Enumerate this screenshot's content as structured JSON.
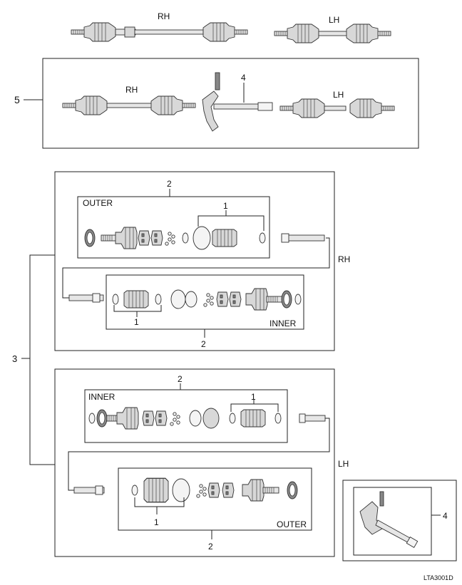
{
  "labels": {
    "rh_top": "RH",
    "lh_top": "LH",
    "callout_5": "5",
    "callout_4_mid": "4",
    "rh_assembly": "RH",
    "lh_assembly": "LH",
    "callout_2_rh_outer": "2",
    "outer_rh": "OUTER",
    "callout_1_rh_outer": "1",
    "rh_side": "RH",
    "callout_1_rh_inner": "1",
    "inner_rh": "INNER",
    "callout_2_rh_inner": "2",
    "callout_3": "3",
    "callout_2_lh_inner": "2",
    "inner_lh": "INNER",
    "callout_1_lh_inner": "1",
    "lh_side": "LH",
    "callout_1_lh_outer": "1",
    "outer_lh": "OUTER",
    "callout_2_lh_outer": "2",
    "callout_4_inset": "4",
    "figure_code": "LTA3001D"
  }
}
